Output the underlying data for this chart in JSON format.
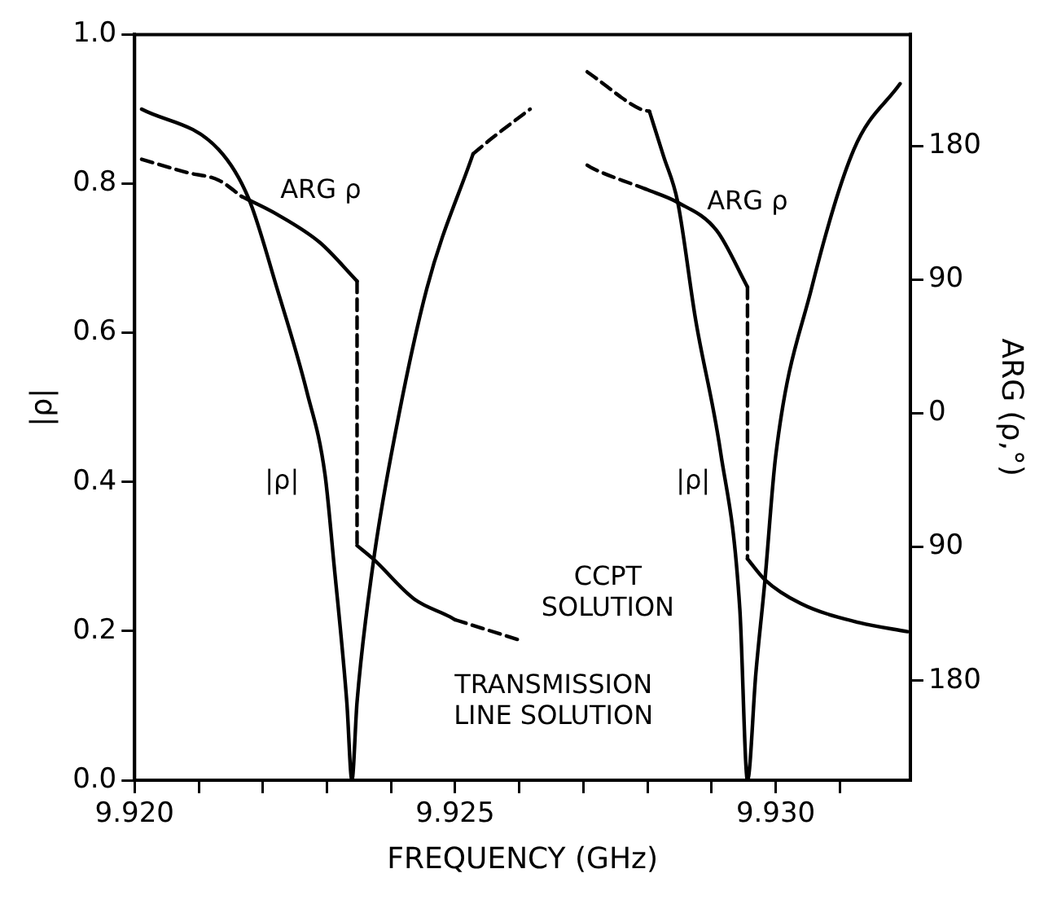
{
  "chart_data": {
    "type": "line",
    "xlabel": "FREQUENCY (GHz)",
    "ylabel": "|ρ|",
    "y2label": "ARG (ρ,°)",
    "legend": false,
    "xlim": [
      9.92,
      9.9321
    ],
    "xticks": [
      {
        "value": 9.92,
        "label": "9.920"
      },
      {
        "value": 9.921,
        "label": null
      },
      {
        "value": 9.922,
        "label": null
      },
      {
        "value": 9.923,
        "label": null
      },
      {
        "value": 9.924,
        "label": null
      },
      9.925,
      {
        "value": 9.926,
        "label": null
      },
      {
        "value": 9.927,
        "label": null
      },
      {
        "value": 9.928,
        "label": null
      },
      {
        "value": 9.929,
        "label": null
      },
      {
        "value": 9.93,
        "label": "9.930"
      },
      {
        "value": 9.931,
        "label": null
      }
    ],
    "ylim": [
      0,
      1
    ],
    "yticks": [
      {
        "value": 0,
        "label": "0.0"
      },
      0.2,
      0.4,
      0.6,
      0.8,
      {
        "value": 1,
        "label": "1.0"
      }
    ],
    "y2lim": [
      -247,
      255
    ],
    "y2ticks": [
      180,
      90,
      0,
      {
        "value": -90,
        "label": "90"
      },
      {
        "value": -180,
        "label": "180"
      }
    ],
    "series": [
      {
        "color": "#000000",
        "line_style": "solid",
        "x": [
          9.92011,
          9.92131,
          9.92178,
          9.92222,
          9.92269,
          9.92297,
          9.92311,
          9.92331,
          9.92339,
          9.92347,
          9.92372,
          9.924,
          9.92456,
          9.92528
        ],
        "values": [
          0.9,
          0.846,
          0.78,
          0.66,
          0.52,
          0.41,
          0.29,
          0.105,
          0,
          0.105,
          0.29,
          0.435,
          0.66,
          0.84
        ]
      },
      {
        "color": "#000000",
        "line_style": "dashed",
        "x": [
          9.92528,
          9.92556,
          9.92617
        ],
        "values": [
          0.84,
          0.86,
          0.9
        ]
      },
      {
        "color": "#000000",
        "line_style": "dashed",
        "x": [
          9.92706,
          9.92714,
          9.92789,
          9.92803
        ],
        "values": [
          0.95,
          0.945,
          0.9,
          0.897
        ]
      },
      {
        "color": "#000000",
        "line_style": "solid",
        "x": [
          9.92803,
          9.92825,
          9.92847,
          9.92875,
          9.92914,
          9.92944,
          9.92956,
          9.92969,
          9.92983,
          9.93,
          9.93056,
          9.93122,
          9.93194
        ],
        "values": [
          0.897,
          0.837,
          0.776,
          0.618,
          0.44,
          0.23,
          0,
          0.143,
          0.266,
          0.435,
          0.66,
          0.846,
          0.934
        ]
      },
      {
        "color": "#000000",
        "line_style": "dashed",
        "axis": "y2",
        "x": [
          9.92011,
          9.92083,
          9.92131,
          9.92167
        ],
        "values": [
          171,
          162,
          157,
          146
        ]
      },
      {
        "color": "#000000",
        "line_style": "solid",
        "axis": "y2",
        "x": [
          9.92167,
          9.92222,
          9.92289,
          9.92347
        ],
        "values": [
          146,
          134,
          115,
          89
        ]
      },
      {
        "color": "#000000",
        "line_style": "dashed",
        "axis": "y2",
        "x": [
          9.92347,
          9.92347
        ],
        "values": [
          89,
          -89
        ]
      },
      {
        "color": "#000000",
        "line_style": "solid",
        "axis": "y2",
        "x": [
          9.92347,
          9.92372,
          9.92436,
          9.92492,
          9.925
        ],
        "values": [
          -89,
          -98,
          -125,
          -137,
          -139
        ]
      },
      {
        "color": "#000000",
        "line_style": "dashed",
        "axis": "y2",
        "x": [
          9.925,
          9.92603
        ],
        "values": [
          -139,
          -153
        ]
      },
      {
        "color": "#000000",
        "line_style": "dashed",
        "axis": "y2",
        "x": [
          9.92706,
          9.92714,
          9.92797
        ],
        "values": [
          167,
          165,
          151
        ]
      },
      {
        "color": "#000000",
        "line_style": "solid",
        "axis": "y2",
        "x": [
          9.92797,
          9.92847,
          9.92908,
          9.92956
        ],
        "values": [
          151,
          142,
          123,
          85
        ]
      },
      {
        "color": "#000000",
        "line_style": "dashed",
        "axis": "y2",
        "x": [
          9.92956,
          9.92956
        ],
        "values": [
          85,
          -98
        ]
      },
      {
        "color": "#000000",
        "line_style": "solid",
        "axis": "y2",
        "x": [
          9.92956,
          9.92983,
          9.93039,
          9.93131,
          9.93206
        ],
        "values": [
          -98,
          -112,
          -128,
          -141,
          -147
        ]
      }
    ],
    "annotations": [
      "ARG ρ",
      "ARG ρ",
      "|ρ|",
      "|ρ|",
      "CCPT\nSOLUTION",
      "TRANSMISSION\nLINE SOLUTION"
    ]
  }
}
